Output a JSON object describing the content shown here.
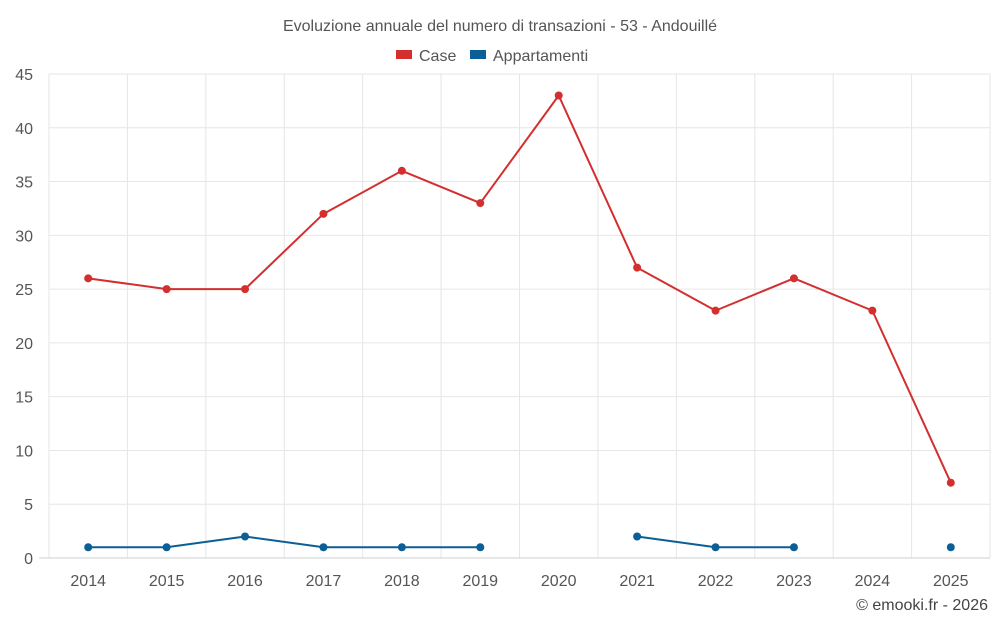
{
  "chart_data": {
    "type": "line",
    "title": "Evoluzione annuale del numero di transazioni - 53 - Andouillé",
    "categories": [
      "2014",
      "2015",
      "2016",
      "2017",
      "2018",
      "2019",
      "2020",
      "2021",
      "2022",
      "2023",
      "2024",
      "2025"
    ],
    "ylim": [
      0,
      45
    ],
    "yticks": [
      "0",
      "5",
      "10",
      "15",
      "20",
      "25",
      "30",
      "35",
      "40",
      "45"
    ],
    "grid": true,
    "legend_position": "top-center",
    "series": [
      {
        "name": "Case",
        "color": "#d32f2f",
        "values": [
          26,
          25,
          25,
          32,
          36,
          33,
          43,
          27,
          23,
          26,
          23,
          7
        ]
      },
      {
        "name": "Appartamenti",
        "color": "#0b5f96",
        "values": [
          1,
          1,
          2,
          1,
          1,
          1,
          null,
          2,
          1,
          1,
          null,
          1
        ]
      }
    ],
    "credit": "© emooki.fr - 2026"
  }
}
